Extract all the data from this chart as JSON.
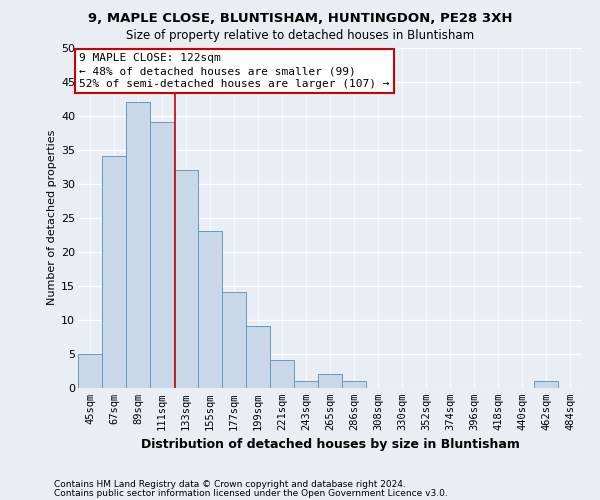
{
  "title1": "9, MAPLE CLOSE, BLUNTISHAM, HUNTINGDON, PE28 3XH",
  "title2": "Size of property relative to detached houses in Bluntisham",
  "xlabel": "Distribution of detached houses by size in Bluntisham",
  "ylabel": "Number of detached properties",
  "footnote1": "Contains HM Land Registry data © Crown copyright and database right 2024.",
  "footnote2": "Contains public sector information licensed under the Open Government Licence v3.0.",
  "bin_labels": [
    "45sqm",
    "67sqm",
    "89sqm",
    "111sqm",
    "133sqm",
    "155sqm",
    "177sqm",
    "199sqm",
    "221sqm",
    "243sqm",
    "265sqm",
    "286sqm",
    "308sqm",
    "330sqm",
    "352sqm",
    "374sqm",
    "396sqm",
    "418sqm",
    "440sqm",
    "462sqm",
    "484sqm"
  ],
  "values": [
    5,
    34,
    42,
    39,
    32,
    23,
    14,
    9,
    4,
    1,
    2,
    1,
    0,
    0,
    0,
    0,
    0,
    0,
    0,
    1,
    0
  ],
  "bar_color": "#c8d8e8",
  "bar_edge_color": "#6699bb",
  "annotation_line1": "9 MAPLE CLOSE: 122sqm",
  "annotation_line2": "← 48% of detached houses are smaller (99)",
  "annotation_line3": "52% of semi-detached houses are larger (107) →",
  "annotation_box_color": "white",
  "annotation_box_edge_color": "#cc0000",
  "vline_x": 3.55,
  "vline_color": "#cc0000",
  "bg_color": "#e8eef4",
  "ylim": [
    0,
    50
  ],
  "yticks": [
    0,
    5,
    10,
    15,
    20,
    25,
    30,
    35,
    40,
    45,
    50
  ],
  "grid_color": "white",
  "title1_fontsize": 9.5,
  "title2_fontsize": 8.5,
  "ylabel_fontsize": 8,
  "xlabel_fontsize": 9,
  "tick_fontsize": 8,
  "xtick_fontsize": 7.5,
  "footnote_fontsize": 6.5,
  "annot_fontsize": 8
}
